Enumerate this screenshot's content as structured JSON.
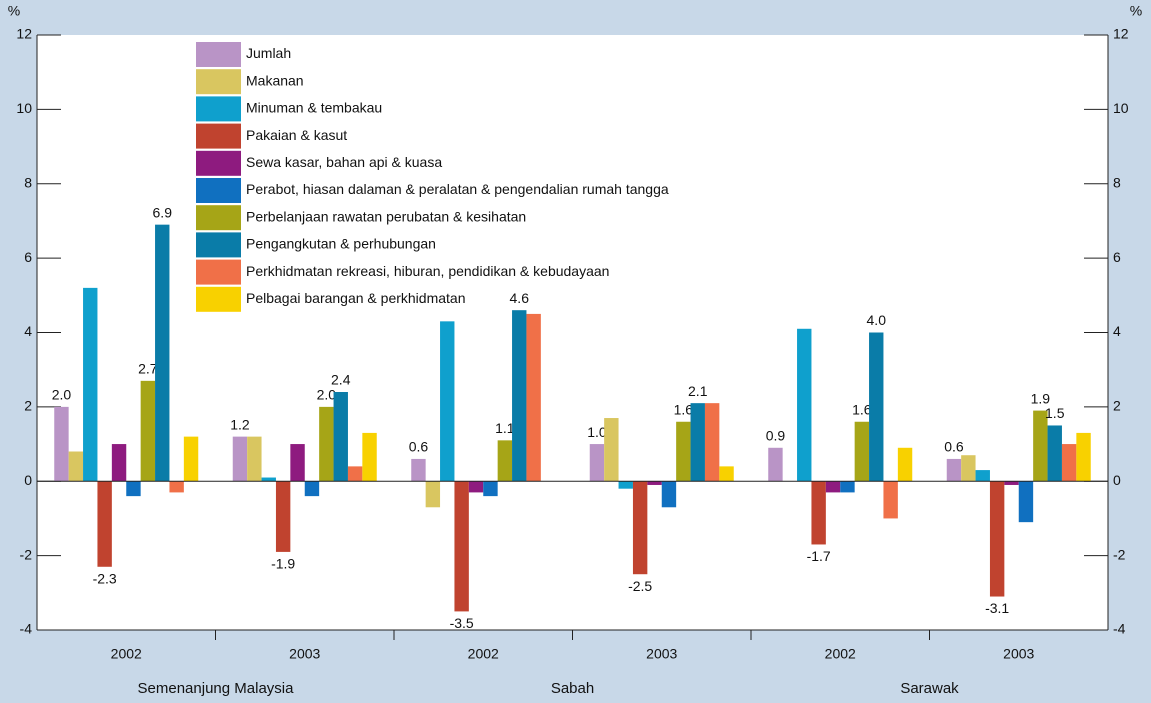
{
  "chart_data": {
    "type": "bar",
    "y_label": "%",
    "y2_label": "%",
    "categories": [
      "2002",
      "2003",
      "2002",
      "2003",
      "2002",
      "2003"
    ],
    "group_labels": [
      "Semenanjung Malaysia",
      "Sabah",
      "Sarawak"
    ],
    "ylim": [
      -4,
      12
    ],
    "yticks": [
      -4,
      -2,
      0,
      2,
      4,
      6,
      8,
      10,
      12
    ],
    "y2lim": [
      -4,
      12
    ],
    "y2ticks": [
      -4,
      -2,
      0,
      2,
      4,
      6,
      8,
      10,
      12
    ],
    "series": [
      {
        "name": "Jumlah",
        "color": "#b994c6",
        "values": [
          2.0,
          1.2,
          0.6,
          1.0,
          0.9,
          0.6
        ],
        "value_labels": [
          "2.0",
          "1.2",
          "0.6",
          "1.0",
          "0.9",
          "0.6"
        ]
      },
      {
        "name": "Makanan",
        "color": "#d9c660",
        "values": [
          0.8,
          1.2,
          -0.7,
          1.7,
          0.0,
          0.7
        ]
      },
      {
        "name": "Minuman & tembakau",
        "color": "#0fa0cd",
        "values": [
          5.2,
          0.1,
          4.3,
          -0.2,
          4.1,
          0.3
        ]
      },
      {
        "name": "Pakaian & kasut",
        "color": "#c0432f",
        "values": [
          -2.3,
          -1.9,
          -3.5,
          -2.5,
          -1.7,
          -3.1
        ],
        "value_labels": [
          "-2.3",
          "-1.9",
          "-3.5",
          "-2.5",
          "-1.7",
          "-3.1"
        ]
      },
      {
        "name": "Sewa kasar, bahan api & kuasa",
        "color": "#8e1b7f",
        "values": [
          1.0,
          1.0,
          -0.3,
          -0.1,
          -0.3,
          -0.1
        ]
      },
      {
        "name": "Perabot, hiasan dalaman & peralatan & pengendalian rumah tangga",
        "color": "#1070c0",
        "values": [
          -0.4,
          -0.4,
          -0.4,
          -0.7,
          -0.3,
          -1.1
        ]
      },
      {
        "name": "Perbelanjaan rawatan perubatan & kesihatan",
        "color": "#a6a517",
        "values": [
          2.7,
          2.0,
          1.1,
          1.6,
          1.6,
          1.9
        ],
        "value_labels": [
          "2.7",
          "2.0",
          "1.1",
          "1.6",
          "1.6",
          "1.9"
        ]
      },
      {
        "name": "Pengangkutan & perhubungan",
        "color": "#0a7ca8",
        "values": [
          6.9,
          2.4,
          4.6,
          2.1,
          4.0,
          1.5
        ],
        "value_labels": [
          "6.9",
          "2.4",
          "4.6",
          "2.1",
          "4.0",
          "1.5"
        ]
      },
      {
        "name": "Perkhidmatan rekreasi, hiburan, pendidikan & kebudayaan",
        "color": "#f07048",
        "values": [
          -0.3,
          0.4,
          4.5,
          2.1,
          -1.0,
          1.0
        ]
      },
      {
        "name": "Pelbagai barangan & perkhidmatan",
        "color": "#f8d100",
        "values": [
          1.2,
          1.3,
          0.0,
          0.4,
          0.9,
          1.3
        ]
      }
    ]
  }
}
